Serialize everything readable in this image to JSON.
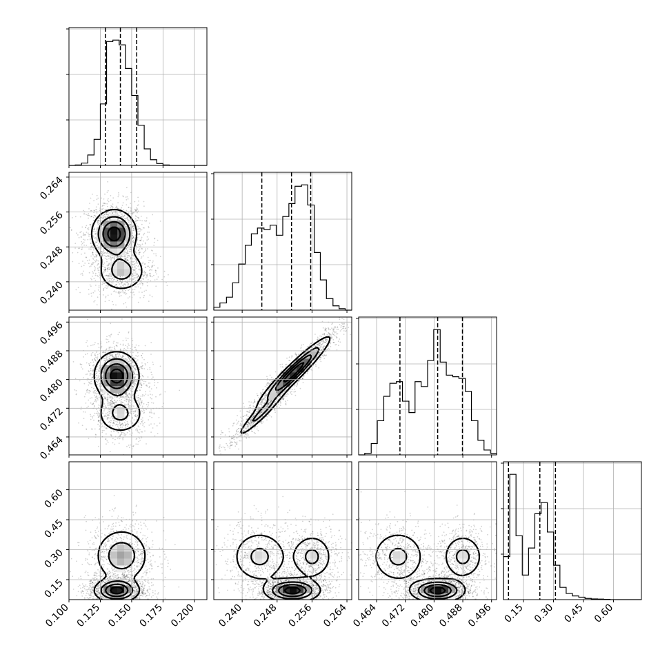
{
  "chart_data": {
    "type": "corner",
    "parameters": [
      {
        "id": "p0",
        "range": [
          0.1,
          0.21
        ],
        "ticks": [
          0.1,
          0.125,
          0.15,
          0.175,
          0.2
        ],
        "tick_labels": [
          "0.100",
          "0.125",
          "0.150",
          "0.175",
          "0.200"
        ]
      },
      {
        "id": "p1",
        "range": [
          0.2335,
          0.2651
        ],
        "ticks": [
          0.24,
          0.248,
          0.256,
          0.264
        ],
        "tick_labels": [
          "0.240",
          "0.248",
          "0.256",
          "0.264"
        ]
      },
      {
        "id": "p2",
        "range": [
          0.459,
          0.4974
        ],
        "ticks": [
          0.464,
          0.472,
          0.48,
          0.488,
          0.496
        ],
        "tick_labels": [
          "0.464",
          "0.472",
          "0.480",
          "0.488",
          "0.496"
        ]
      },
      {
        "id": "p3",
        "range": [
          0.05,
          0.74
        ],
        "ticks": [
          0.15,
          0.3,
          0.45,
          0.6
        ],
        "tick_labels": [
          "0.15",
          "0.30",
          "0.45",
          "0.60"
        ]
      }
    ],
    "histograms": [
      {
        "param": 0,
        "quantiles": [
          0.129,
          0.141,
          0.154
        ],
        "bin_edges": [
          0.1,
          0.105,
          0.11,
          0.115,
          0.12,
          0.125,
          0.13,
          0.135,
          0.14,
          0.145,
          0.15,
          0.155,
          0.16,
          0.165,
          0.17,
          0.175,
          0.18,
          0.185,
          0.19,
          0.195,
          0.2,
          0.205,
          0.21
        ],
        "counts": [
          0,
          1,
          5,
          22,
          55,
          130,
          262,
          265,
          255,
          205,
          148,
          85,
          35,
          12,
          4,
          1,
          0,
          0,
          0,
          0,
          0,
          0
        ]
      },
      {
        "param": 1,
        "quantiles": [
          0.2445,
          0.2513,
          0.2557
        ],
        "bin_edges": [
          0.2335,
          0.2349,
          0.2364,
          0.2378,
          0.2392,
          0.2407,
          0.2421,
          0.2435,
          0.245,
          0.2464,
          0.2478,
          0.2493,
          0.2507,
          0.2521,
          0.2536,
          0.255,
          0.2565,
          0.2579,
          0.2593,
          0.2608,
          0.2622,
          0.2636,
          0.2651
        ],
        "counts": [
          10,
          25,
          45,
          95,
          160,
          225,
          265,
          285,
          280,
          295,
          260,
          325,
          370,
          430,
          435,
          365,
          200,
          105,
          40,
          15,
          5,
          0
        ]
      },
      {
        "param": 2,
        "quantiles": [
          0.4705,
          0.481,
          0.4879
        ],
        "bin_edges": [
          0.459,
          0.4607,
          0.4625,
          0.4642,
          0.466,
          0.4677,
          0.4695,
          0.4712,
          0.473,
          0.4747,
          0.4764,
          0.4782,
          0.4799,
          0.4817,
          0.4834,
          0.4852,
          0.4869,
          0.4887,
          0.4904,
          0.4922,
          0.4939,
          0.4957,
          0.4974
        ],
        "counts": [
          0,
          5,
          35,
          105,
          180,
          220,
          225,
          165,
          130,
          225,
          210,
          290,
          385,
          285,
          245,
          240,
          235,
          195,
          105,
          45,
          15,
          5
        ]
      },
      {
        "param": 3,
        "quantiles": [
          0.075,
          0.232,
          0.31
        ],
        "bin_edges": [
          0.05,
          0.0814,
          0.1127,
          0.1441,
          0.1755,
          0.2068,
          0.2382,
          0.2695,
          0.3009,
          0.3323,
          0.3636,
          0.395,
          0.4264,
          0.4577,
          0.4891,
          0.5205,
          0.5518,
          0.5832,
          0.6145,
          0.6459,
          0.6773,
          0.7086,
          0.74
        ],
        "counts": [
          175,
          510,
          260,
          100,
          210,
          350,
          395,
          275,
          140,
          50,
          25,
          15,
          10,
          5,
          3,
          2,
          1,
          0,
          0,
          0,
          0,
          0
        ]
      }
    ],
    "joint_panels": [
      {
        "x_param": 0,
        "y_param": 1,
        "modes": [
          {
            "x": 0.136,
            "y": 0.251,
            "sx": 0.009,
            "sy": 0.0028,
            "w": 1.0
          },
          {
            "x": 0.142,
            "y": 0.2425,
            "sx": 0.01,
            "sy": 0.0025,
            "w": 0.5
          }
        ]
      },
      {
        "x_param": 0,
        "y_param": 2,
        "modes": [
          {
            "x": 0.138,
            "y": 0.481,
            "sx": 0.009,
            "sy": 0.0034,
            "w": 1.0
          },
          {
            "x": 0.141,
            "y": 0.4705,
            "sx": 0.01,
            "sy": 0.003,
            "w": 0.45
          }
        ]
      },
      {
        "x_param": 1,
        "y_param": 2,
        "modes": [
          {
            "x": 0.2518,
            "y": 0.482,
            "sx": 0.0042,
            "sy": 0.005,
            "w": 1.0,
            "rho": 0.95
          },
          {
            "x": 0.2443,
            "y": 0.4705,
            "sx": 0.003,
            "sy": 0.0036,
            "w": 0.45,
            "rho": 0.95
          }
        ]
      },
      {
        "x_param": 0,
        "y_param": 3,
        "modes": [
          {
            "x": 0.138,
            "y": 0.095,
            "sx": 0.009,
            "sy": 0.03,
            "w": 1.0
          },
          {
            "x": 0.142,
            "y": 0.27,
            "sx": 0.011,
            "sy": 0.07,
            "w": 0.6
          }
        ]
      },
      {
        "x_param": 1,
        "y_param": 3,
        "modes": [
          {
            "x": 0.2515,
            "y": 0.095,
            "sx": 0.0032,
            "sy": 0.03,
            "w": 1.0
          },
          {
            "x": 0.244,
            "y": 0.265,
            "sx": 0.0034,
            "sy": 0.07,
            "w": 0.45
          },
          {
            "x": 0.256,
            "y": 0.265,
            "sx": 0.0025,
            "sy": 0.06,
            "w": 0.45
          }
        ]
      },
      {
        "x_param": 2,
        "y_param": 3,
        "modes": [
          {
            "x": 0.481,
            "y": 0.095,
            "sx": 0.0038,
            "sy": 0.03,
            "w": 1.0
          },
          {
            "x": 0.47,
            "y": 0.265,
            "sx": 0.004,
            "sy": 0.07,
            "w": 0.45
          },
          {
            "x": 0.488,
            "y": 0.265,
            "sx": 0.003,
            "sy": 0.06,
            "w": 0.45
          }
        ]
      }
    ],
    "grid": true,
    "title": "",
    "xlabel": "",
    "ylabel": ""
  }
}
